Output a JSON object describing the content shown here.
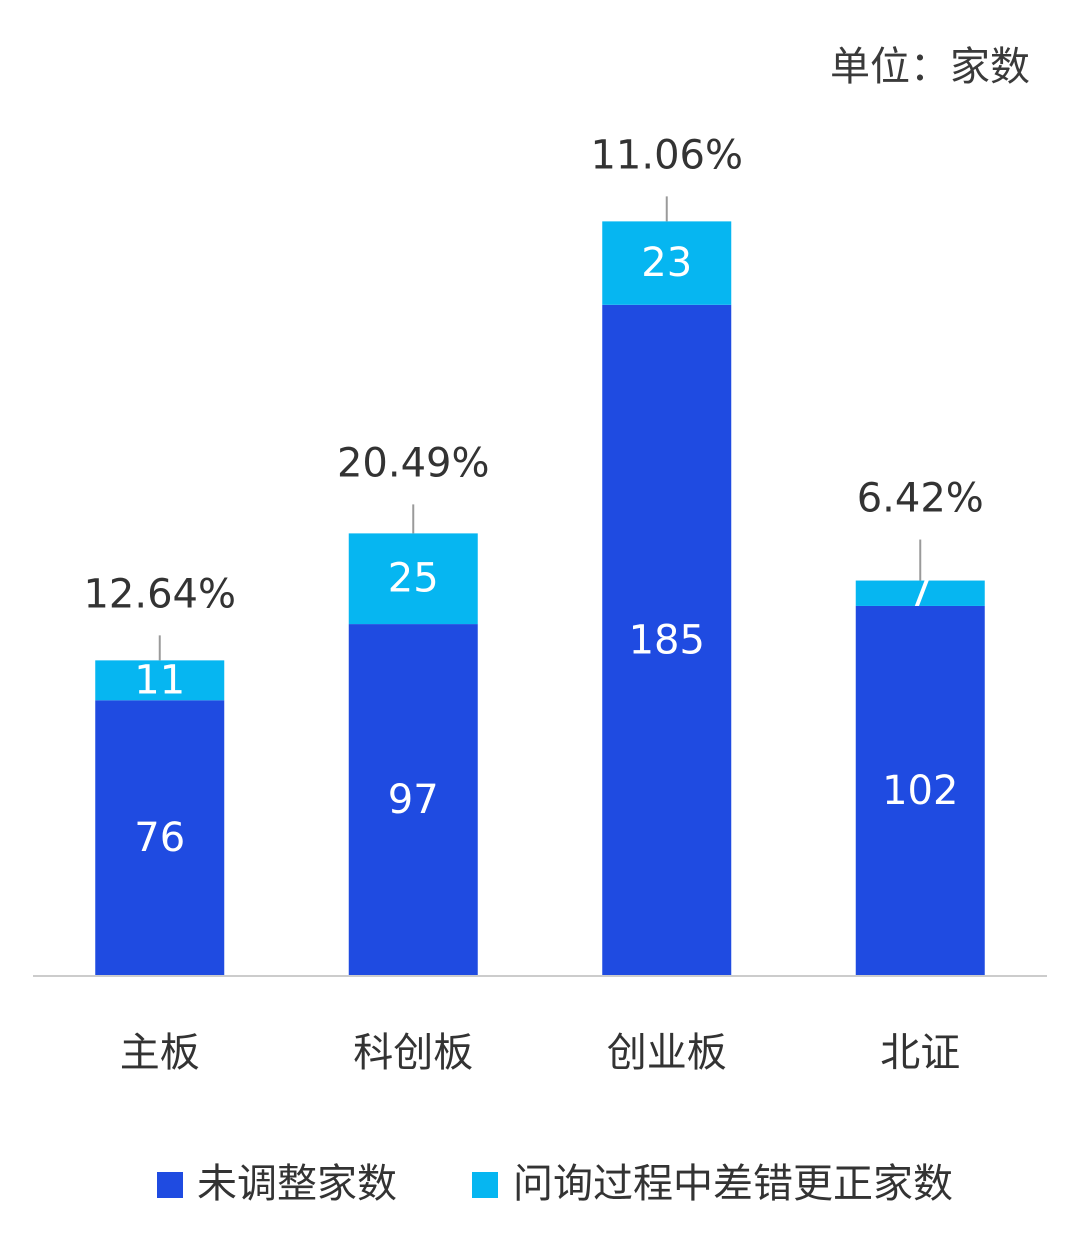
{
  "colors": {
    "axis": "#cccccc",
    "leader": "#9a9a9a",
    "text": "#333333"
  },
  "chart_data": {
    "type": "bar",
    "stacked": true,
    "unit_label": "单位：家数",
    "categories": [
      "主板",
      "科创板",
      "创业板",
      "北证"
    ],
    "series": [
      {
        "name": "未调整家数",
        "values": [
          76,
          97,
          185,
          102
        ],
        "color": "#1f4be1"
      },
      {
        "name": "问询过程中差错更正家数",
        "values": [
          11,
          25,
          23,
          7
        ],
        "color": "#06b6f1"
      }
    ],
    "annotations": [
      "12.64%",
      "20.49%",
      "11.06%",
      "6.42%"
    ],
    "ylim": [
      0,
      250
    ],
    "grid": false,
    "legend_position": "bottom"
  }
}
